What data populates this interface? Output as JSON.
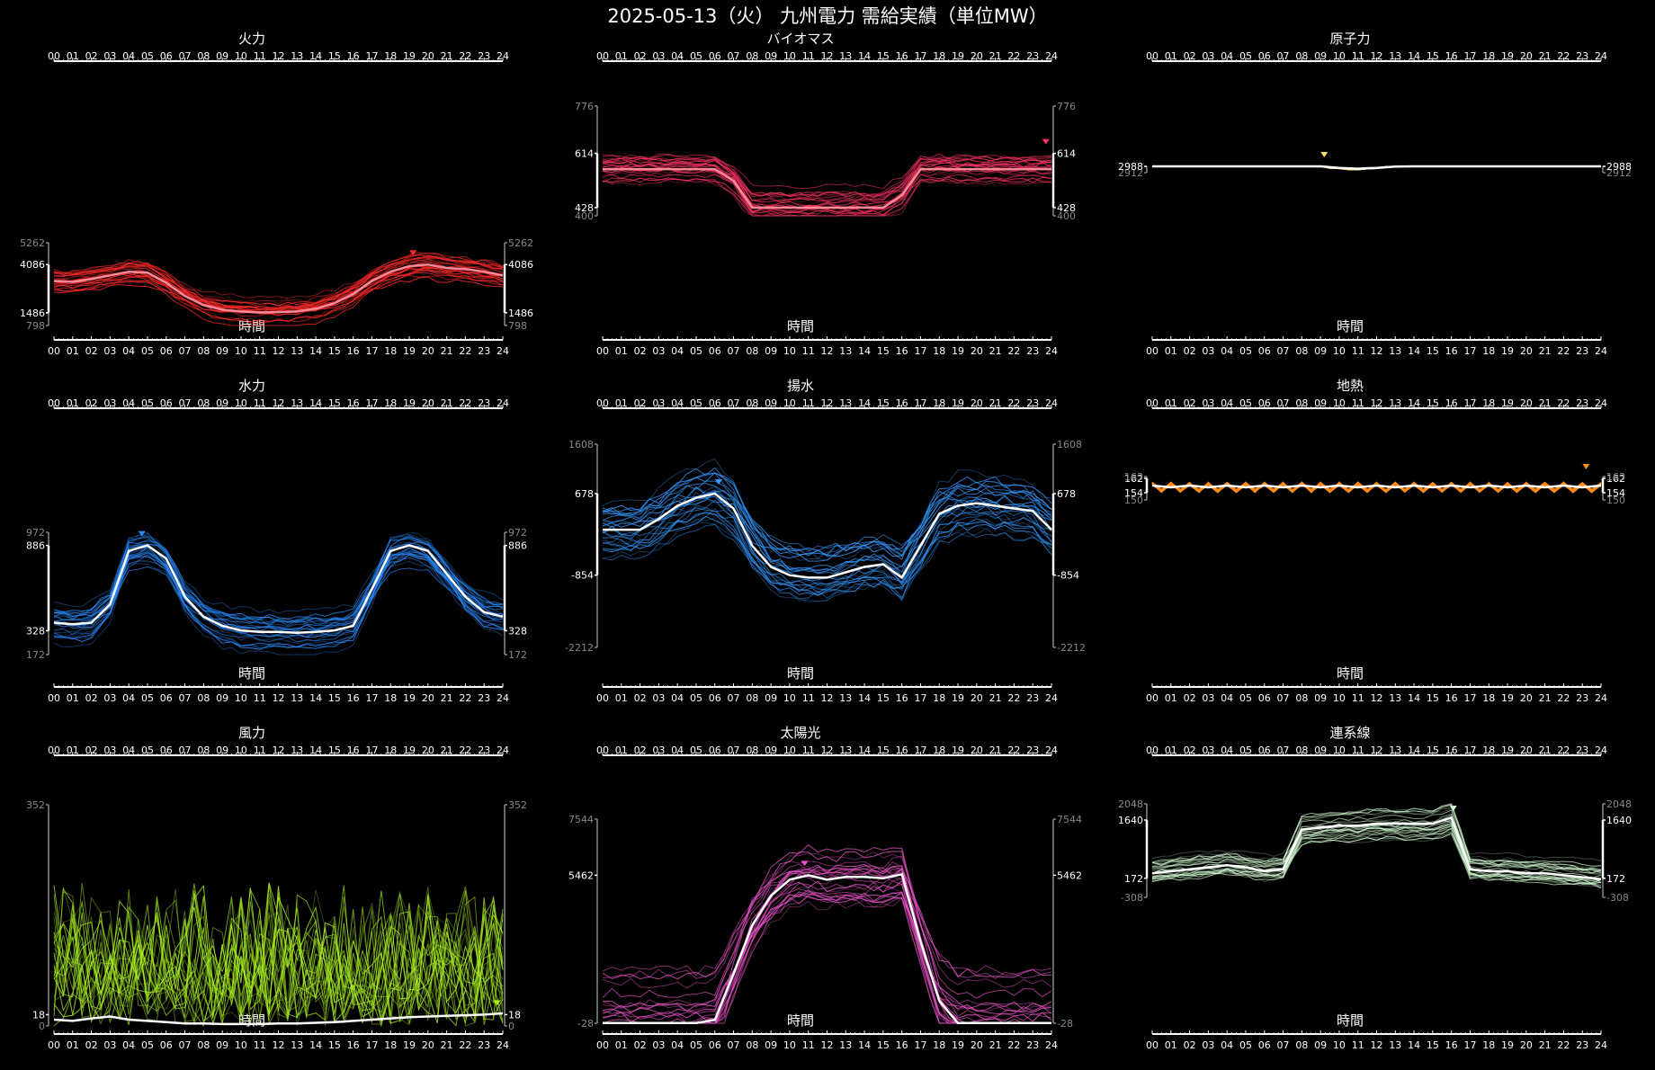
{
  "title": "2025-05-13（火） 九州電力 需給実績（単位MW）",
  "hours": [
    "00",
    "01",
    "02",
    "03",
    "04",
    "05",
    "06",
    "07",
    "08",
    "09",
    "10",
    "11",
    "12",
    "13",
    "14",
    "15",
    "16",
    "17",
    "18",
    "19",
    "20",
    "21",
    "22",
    "23",
    "24"
  ],
  "xlabel": "時間",
  "chart_data": [
    {
      "type": "line",
      "title": "火力",
      "color": "#ff2a2a",
      "ylim": [
        798,
        5262
      ],
      "yticks": [
        798,
        1486,
        4086,
        5262
      ],
      "ymajor": [
        1486,
        4086
      ],
      "shape": "thermal",
      "x_range": [
        0,
        24
      ],
      "marker_x": 19.2,
      "marker_y": 4086,
      "series": [
        {
          "values": [
            3200,
            3150,
            3300,
            3500,
            3700,
            3650,
            3100,
            2400,
            1900,
            1650,
            1550,
            1500,
            1520,
            1560,
            1700,
            2000,
            2500,
            3200,
            3700,
            4000,
            4086,
            3900,
            3850,
            3700,
            3500
          ]
        }
      ]
    },
    {
      "type": "line",
      "title": "バイオマス",
      "color": "#ff3366",
      "ylim": [
        400,
        776
      ],
      "yticks": [
        400,
        428,
        614,
        776
      ],
      "ymajor": [
        428,
        614
      ],
      "shape": "biomass",
      "x_range": [
        0,
        24
      ],
      "marker_x": 23.7,
      "marker_y": 614,
      "series": [
        {
          "values": [
            560,
            560,
            560,
            560,
            560,
            560,
            560,
            520,
            428,
            428,
            428,
            428,
            428,
            428,
            428,
            428,
            470,
            560,
            560,
            560,
            560,
            560,
            560,
            560,
            560
          ]
        }
      ]
    },
    {
      "type": "line",
      "title": "原子力",
      "color": "#ffe066",
      "ylim": [
        2912,
        2988
      ],
      "yticks": [
        2912,
        2988
      ],
      "ymajor": [
        2988
      ],
      "shape": "nuclear",
      "x_range": [
        0,
        24
      ],
      "marker_x": 9.2,
      "marker_y": 2988,
      "series": [
        {
          "values": [
            2988,
            2988,
            2988,
            2988,
            2988,
            2988,
            2988,
            2988,
            2988,
            2988,
            2970,
            2960,
            2970,
            2985,
            2988,
            2988,
            2988,
            2988,
            2988,
            2988,
            2988,
            2988,
            2988,
            2988,
            2988
          ]
        }
      ]
    },
    {
      "type": "line",
      "title": "水力",
      "color": "#2a8cff",
      "ylim": [
        172,
        972
      ],
      "yticks": [
        172,
        328,
        886,
        972
      ],
      "ymajor": [
        328,
        886
      ],
      "shape": "hydro",
      "x_range": [
        0,
        24
      ],
      "marker_x": 4.7,
      "marker_y": 886,
      "series": [
        {
          "values": [
            380,
            370,
            380,
            500,
            850,
            886,
            800,
            550,
            420,
            360,
            330,
            320,
            320,
            315,
            320,
            330,
            360,
            600,
            850,
            886,
            850,
            700,
            550,
            450,
            420
          ]
        }
      ]
    },
    {
      "type": "line",
      "title": "揚水",
      "color": "#3399ff",
      "ylim": [
        -2212,
        1608
      ],
      "yticks": [
        -2212,
        -854,
        678,
        1608
      ],
      "ymajor": [
        -854,
        678
      ],
      "shape": "pumped",
      "x_range": [
        0,
        24
      ],
      "marker_x": 6.2,
      "marker_y": 678,
      "series": [
        {
          "values": [
            0,
            0,
            0,
            200,
            450,
            600,
            678,
            400,
            -300,
            -700,
            -854,
            -900,
            -900,
            -800,
            -700,
            -650,
            -900,
            -300,
            300,
            450,
            500,
            450,
            400,
            350,
            0
          ]
        }
      ]
    },
    {
      "type": "line",
      "title": "地熱",
      "color": "#ff8c1a",
      "ylim": [
        150,
        163
      ],
      "yticks": [
        150,
        154,
        162,
        163
      ],
      "ymajor": [
        154,
        162
      ],
      "shape": "geo",
      "x_range": [
        0,
        24
      ],
      "marker_x": 23.2,
      "marker_y": 162,
      "series": [
        {
          "values": [
            158,
            157,
            158,
            157,
            158,
            157,
            158,
            157,
            158,
            157,
            158,
            157,
            158,
            157,
            158,
            157,
            158,
            157,
            158,
            157,
            158,
            157,
            158,
            157,
            158
          ]
        }
      ]
    },
    {
      "type": "line",
      "title": "風力",
      "color": "#aaee22",
      "ylim": [
        0,
        352
      ],
      "yticks": [
        0,
        18,
        352
      ],
      "ymajor": [
        18
      ],
      "shape": "wind",
      "x_range": [
        0,
        24
      ],
      "marker_x": 23.7,
      "marker_y": 18,
      "series": [
        {
          "values": [
            10,
            8,
            12,
            15,
            10,
            8,
            6,
            4,
            4,
            3,
            3,
            3,
            4,
            4,
            5,
            6,
            8,
            10,
            12,
            14,
            15,
            16,
            17,
            18,
            20
          ]
        }
      ]
    },
    {
      "type": "line",
      "title": "太陽光",
      "color": "#ee55cc",
      "ylim": [
        -28,
        7544
      ],
      "yticks": [
        -28,
        5462,
        7544
      ],
      "ymajor": [
        5462
      ],
      "shape": "solar",
      "x_range": [
        0,
        24
      ],
      "marker_x": 10.8,
      "marker_y": 5462,
      "series": [
        {
          "values": [
            -20,
            -20,
            -20,
            -20,
            -20,
            -20,
            100,
            1800,
            3600,
            4700,
            5300,
            5462,
            5300,
            5400,
            5400,
            5350,
            5500,
            3000,
            800,
            -20,
            -20,
            -20,
            -20,
            -20,
            -20
          ]
        }
      ]
    },
    {
      "type": "line",
      "title": "連系線",
      "color": "#d6ffd6",
      "ylim": [
        -308,
        2048
      ],
      "yticks": [
        -308,
        172,
        1640,
        2048
      ],
      "ymajor": [
        172,
        1640
      ],
      "shape": "tie",
      "x_range": [
        0,
        24
      ],
      "marker_x": 16.1,
      "marker_y": 1640,
      "series": [
        {
          "values": [
            300,
            350,
            400,
            450,
            500,
            450,
            350,
            400,
            1400,
            1450,
            1500,
            1500,
            1550,
            1550,
            1550,
            1550,
            1700,
            400,
            350,
            350,
            300,
            300,
            250,
            200,
            150
          ]
        }
      ]
    }
  ]
}
